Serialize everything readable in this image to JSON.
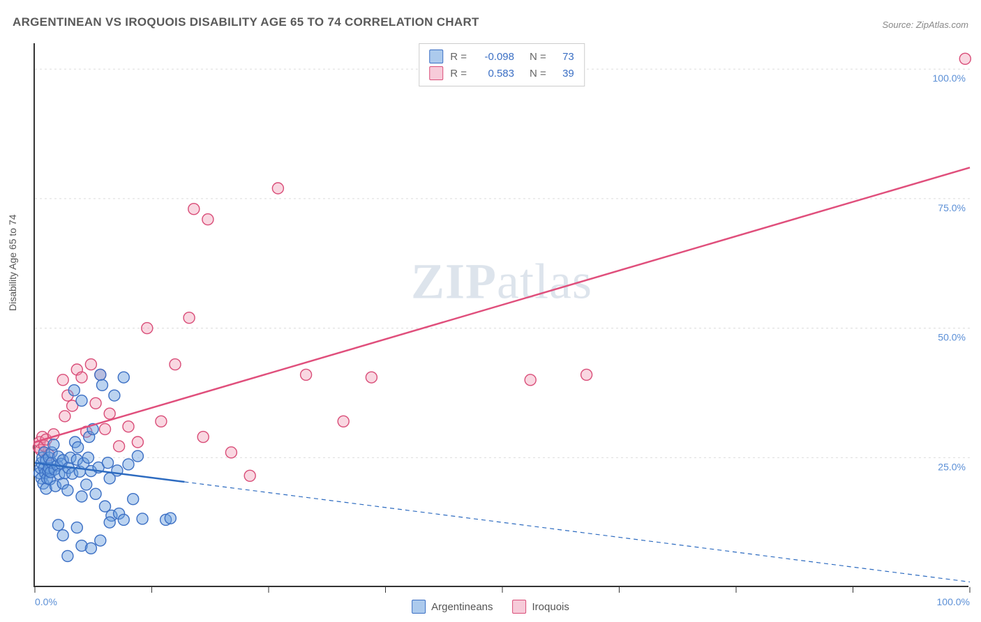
{
  "title": "ARGENTINEAN VS IROQUOIS DISABILITY AGE 65 TO 74 CORRELATION CHART",
  "source_label": "Source: ZipAtlas.com",
  "ylabel": "Disability Age 65 to 74",
  "watermark_bold": "ZIP",
  "watermark_light": "atlas",
  "chart": {
    "type": "scatter",
    "background_color": "#ffffff",
    "grid_color": "#dcdcdc",
    "axis_color": "#333333",
    "tick_label_color": "#5b8fd6",
    "xlim": [
      0,
      100
    ],
    "ylim": [
      0,
      105
    ],
    "xticks": [
      0,
      12.5,
      25,
      37.5,
      50,
      62.5,
      75,
      87.5,
      100
    ],
    "xtick_labels": {
      "0": "0.0%",
      "100": "100.0%"
    },
    "yticks": [
      25,
      50,
      75,
      100
    ],
    "ytick_labels": {
      "25": "25.0%",
      "50": "50.0%",
      "75": "75.0%",
      "100": "100.0%"
    },
    "marker_radius": 8,
    "marker_stroke_width": 1.4,
    "trend_line_width_solid": 2.5,
    "trend_line_width_dashed": 1.2,
    "series": [
      {
        "name": "Argentineans",
        "fill": "rgba(104,158,222,0.45)",
        "stroke": "#3b6fc4",
        "legend_fill": "rgba(104,158,222,0.55)",
        "legend_stroke": "#3b6fc4",
        "R": "-0.098",
        "N": "73",
        "trend": {
          "x1": 0,
          "y1": 24,
          "x2": 100,
          "y2": 1,
          "solid_until_x": 16,
          "dash": "6,5",
          "color": "#2d6bc0"
        },
        "points": [
          [
            0.5,
            22
          ],
          [
            0.6,
            23
          ],
          [
            0.7,
            21
          ],
          [
            0.7,
            24
          ],
          [
            0.8,
            25
          ],
          [
            0.9,
            20
          ],
          [
            1.0,
            26
          ],
          [
            1.0,
            23
          ],
          [
            1.1,
            22
          ],
          [
            1.2,
            24.5
          ],
          [
            1.2,
            19
          ],
          [
            1.3,
            21
          ],
          [
            1.4,
            22.5
          ],
          [
            1.5,
            23
          ],
          [
            1.5,
            25
          ],
          [
            1.6,
            20.8
          ],
          [
            1.7,
            22.2
          ],
          [
            1.8,
            24
          ],
          [
            1.8,
            26
          ],
          [
            2.0,
            27.5
          ],
          [
            2.1,
            22.7
          ],
          [
            2.2,
            19.5
          ],
          [
            2.4,
            23.5
          ],
          [
            2.5,
            25.2
          ],
          [
            2.6,
            21.8
          ],
          [
            2.8,
            23.8
          ],
          [
            3.0,
            24.5
          ],
          [
            3.0,
            20
          ],
          [
            3.2,
            22
          ],
          [
            3.5,
            18.7
          ],
          [
            3.6,
            23
          ],
          [
            3.8,
            25
          ],
          [
            4.0,
            21.9
          ],
          [
            4.2,
            38
          ],
          [
            4.3,
            28
          ],
          [
            4.5,
            24.6
          ],
          [
            4.6,
            27
          ],
          [
            4.8,
            22.3
          ],
          [
            5.0,
            36
          ],
          [
            5.0,
            17.5
          ],
          [
            5.2,
            23.9
          ],
          [
            5.5,
            19.8
          ],
          [
            5.7,
            25
          ],
          [
            5.8,
            29
          ],
          [
            6.0,
            22.4
          ],
          [
            6.2,
            30.5
          ],
          [
            6.5,
            18
          ],
          [
            6.8,
            23.1
          ],
          [
            7.0,
            41
          ],
          [
            7.2,
            39
          ],
          [
            7.5,
            15.6
          ],
          [
            7.8,
            24
          ],
          [
            8.0,
            21
          ],
          [
            8.2,
            13.8
          ],
          [
            8.5,
            37
          ],
          [
            8.8,
            22.5
          ],
          [
            9.0,
            14.2
          ],
          [
            9.5,
            40.5
          ],
          [
            10.0,
            23.7
          ],
          [
            10.5,
            17
          ],
          [
            11.0,
            25.3
          ],
          [
            7.0,
            9
          ],
          [
            5.0,
            8
          ],
          [
            4.5,
            11.5
          ],
          [
            6.0,
            7.5
          ],
          [
            3.5,
            6
          ],
          [
            8.0,
            12.5
          ],
          [
            9.5,
            13
          ],
          [
            11.5,
            13.2
          ],
          [
            14.0,
            13
          ],
          [
            14.5,
            13.3
          ],
          [
            3.0,
            10
          ],
          [
            2.5,
            12
          ]
        ]
      },
      {
        "name": "Iroquois",
        "fill": "rgba(238,140,170,0.35)",
        "stroke": "#d94d78",
        "legend_fill": "rgba(238,140,170,0.45)",
        "legend_stroke": "#d94d78",
        "R": "0.583",
        "N": "39",
        "trend": {
          "x1": 0,
          "y1": 28,
          "x2": 100,
          "y2": 81,
          "solid_until_x": 100,
          "dash": "",
          "color": "#e04f7c"
        },
        "points": [
          [
            0.4,
            27
          ],
          [
            0.5,
            28
          ],
          [
            0.6,
            26.5
          ],
          [
            0.8,
            29
          ],
          [
            1.0,
            27.3
          ],
          [
            1.2,
            28.5
          ],
          [
            1.5,
            25.5
          ],
          [
            2.0,
            29.5
          ],
          [
            3.0,
            40
          ],
          [
            3.2,
            33
          ],
          [
            3.5,
            37
          ],
          [
            4.0,
            35
          ],
          [
            4.5,
            42
          ],
          [
            5.0,
            40.5
          ],
          [
            5.5,
            30
          ],
          [
            6.0,
            43
          ],
          [
            6.5,
            35.5
          ],
          [
            7.0,
            41
          ],
          [
            7.5,
            30.5
          ],
          [
            8.0,
            33.5
          ],
          [
            9.0,
            27.2
          ],
          [
            10.0,
            31
          ],
          [
            11.0,
            28
          ],
          [
            12.0,
            50
          ],
          [
            13.5,
            32
          ],
          [
            15.0,
            43
          ],
          [
            16.5,
            52
          ],
          [
            17.0,
            73
          ],
          [
            18.0,
            29
          ],
          [
            18.5,
            71
          ],
          [
            21.0,
            26
          ],
          [
            23.0,
            21.5
          ],
          [
            26.0,
            77
          ],
          [
            29.0,
            41
          ],
          [
            33.0,
            32
          ],
          [
            36.0,
            40.5
          ],
          [
            53.0,
            40
          ],
          [
            59.0,
            41
          ],
          [
            99.5,
            102
          ]
        ]
      }
    ]
  },
  "stats_box": {
    "r_label": "R =",
    "n_label": "N ="
  },
  "bottom_legend": {
    "items": [
      "Argentineans",
      "Iroquois"
    ]
  }
}
